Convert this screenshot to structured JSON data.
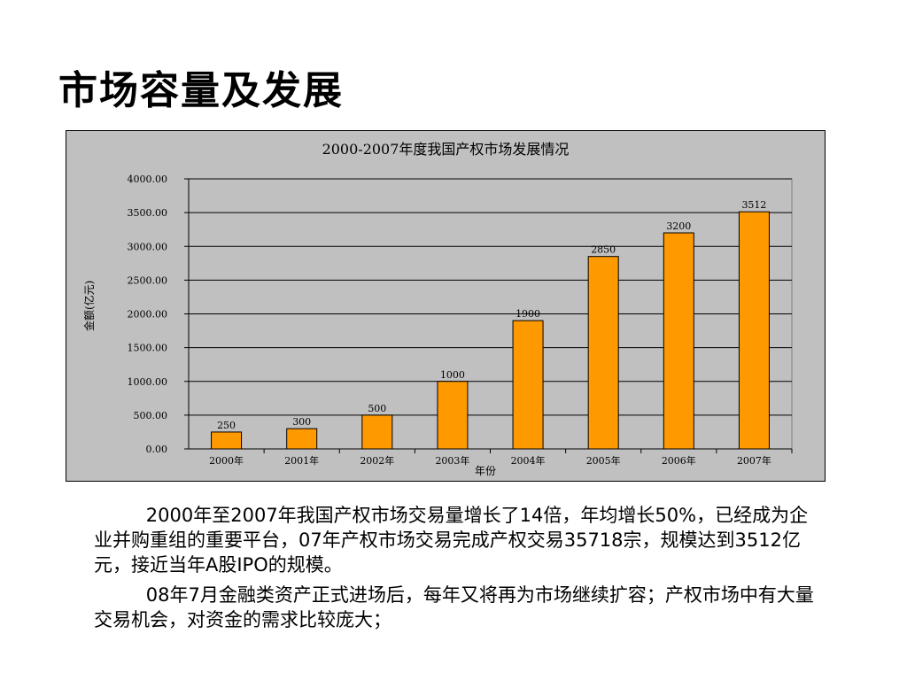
{
  "slide": {
    "title": "市场容量及发展",
    "paragraphs": [
      "2000年至2007年我国产权市场交易量增长了14倍，年均增长50%，已经成为企业并购重组的重要平台，07年产权市场交易完成产权交易35718宗，规模达到3512亿元，接近当年A股IPO的规模。",
      "08年7月金融类资产正式进场后，每年又将再为市场继续扩容；产权市场中有大量交易机会，对资金的需求比较庞大；"
    ]
  },
  "chart_data": {
    "type": "bar",
    "title": "2000-2007年度我国产权市场发展情况",
    "xlabel": "年份",
    "ylabel": "金额(亿元)",
    "categories": [
      "2000年",
      "2001年",
      "2002年",
      "2003年",
      "2004年",
      "2005年",
      "2006年",
      "2007年"
    ],
    "values": [
      250,
      300,
      500,
      1000,
      1900,
      2850,
      3200,
      3512
    ],
    "data_labels": [
      "250",
      "300",
      "500",
      "1000",
      "1900",
      "2850",
      "3200",
      "3512"
    ],
    "y_ticks": [
      "0.00",
      "500.00",
      "1000.00",
      "1500.00",
      "2000.00",
      "2500.00",
      "3000.00",
      "3500.00",
      "4000.00"
    ],
    "ylim": [
      0,
      4000
    ],
    "grid": true,
    "legend": "none",
    "colors": {
      "bar": "#ff9900",
      "plot_background": "#c0c0c0",
      "chart_background": "#c0c0c0",
      "gridline": "#000000"
    }
  }
}
